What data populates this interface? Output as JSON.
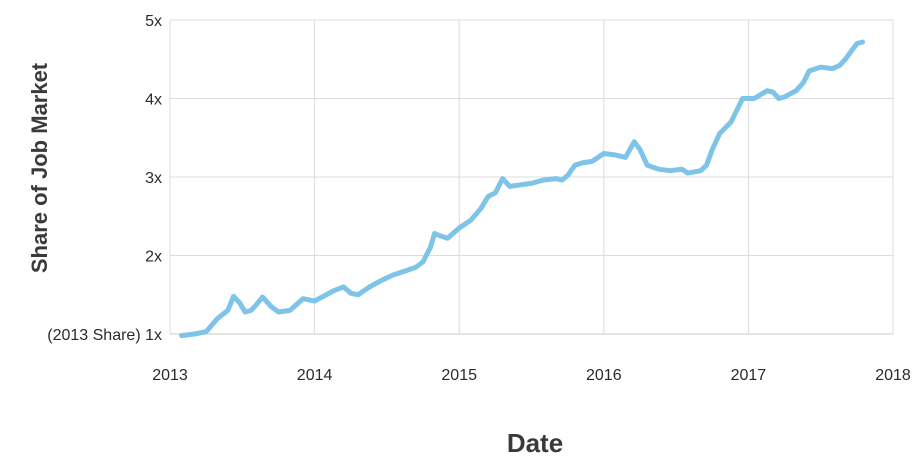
{
  "chart_data": {
    "type": "line",
    "title": "",
    "xlabel": "Date",
    "ylabel": "Share of Job Market",
    "xlim": [
      2013,
      2018
    ],
    "ylim": [
      1,
      5
    ],
    "x_ticks": [
      "2013",
      "2014",
      "2015",
      "2016",
      "2017",
      "2018"
    ],
    "y_ticks": [
      "(2013 Share) 1x",
      "2x",
      "3x",
      "4x",
      "5x"
    ],
    "grid": true,
    "line_color": "#7ec3e8",
    "series": [
      {
        "x": [
          2013.08,
          2013.17,
          2013.25,
          2013.33,
          2013.4,
          2013.44,
          2013.48,
          2013.52,
          2013.56,
          2013.6,
          2013.64,
          2013.7,
          2013.75,
          2013.83,
          2013.92,
          2014.0,
          2014.08,
          2014.13,
          2014.2,
          2014.25,
          2014.3,
          2014.38,
          2014.46,
          2014.54,
          2014.62,
          2014.7,
          2014.75,
          2014.8,
          2014.83,
          2014.87,
          2014.92,
          2015.0,
          2015.08,
          2015.15,
          2015.2,
          2015.25,
          2015.3,
          2015.35,
          2015.5,
          2015.58,
          2015.67,
          2015.71,
          2015.75,
          2015.8,
          2015.85,
          2015.92,
          2016.0,
          2016.08,
          2016.15,
          2016.21,
          2016.25,
          2016.3,
          2016.38,
          2016.46,
          2016.54,
          2016.58,
          2016.67,
          2016.71,
          2016.75,
          2016.8,
          2016.88,
          2016.92,
          2016.96,
          2017.04,
          2017.13,
          2017.17,
          2017.21,
          2017.25,
          2017.33,
          2017.38,
          2017.42,
          2017.5,
          2017.58,
          2017.63,
          2017.67,
          2017.71,
          2017.75,
          2017.79
        ],
        "y": [
          0.98,
          1.0,
          1.03,
          1.2,
          1.3,
          1.48,
          1.4,
          1.28,
          1.3,
          1.38,
          1.47,
          1.35,
          1.28,
          1.3,
          1.45,
          1.42,
          1.5,
          1.55,
          1.6,
          1.52,
          1.5,
          1.6,
          1.68,
          1.75,
          1.8,
          1.85,
          1.92,
          2.1,
          2.28,
          2.25,
          2.22,
          2.35,
          2.45,
          2.6,
          2.75,
          2.8,
          2.98,
          2.88,
          2.92,
          2.96,
          2.98,
          2.96,
          3.02,
          3.15,
          3.18,
          3.2,
          3.3,
          3.28,
          3.25,
          3.45,
          3.35,
          3.15,
          3.1,
          3.08,
          3.1,
          3.05,
          3.08,
          3.15,
          3.35,
          3.55,
          3.7,
          3.85,
          4.0,
          4.0,
          4.1,
          4.08,
          4.0,
          4.02,
          4.1,
          4.2,
          4.35,
          4.4,
          4.38,
          4.42,
          4.5,
          4.6,
          4.7,
          4.72
        ]
      }
    ]
  }
}
